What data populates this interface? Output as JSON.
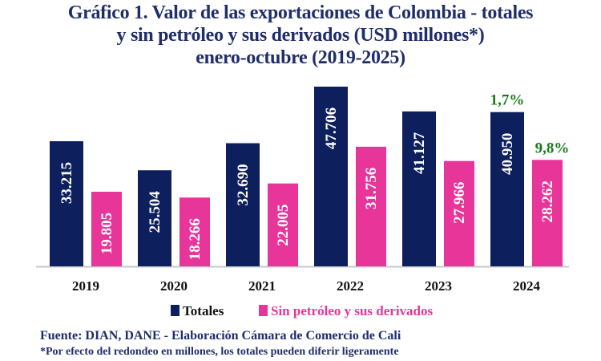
{
  "chart_data": {
    "type": "bar",
    "title": [
      "Gráfico 1. Valor de las exportaciones de Colombia - totales",
      "y sin petróleo y sus derivados (USD millones*)",
      "enero-octubre (2019-2025)"
    ],
    "categories": [
      "2019",
      "2020",
      "2021",
      "2022",
      "2023",
      "2024"
    ],
    "series": [
      {
        "name": "Totales",
        "color": "#0e1f5e",
        "values": [
          33215,
          25504,
          32690,
          47706,
          41127,
          40950
        ],
        "labels": [
          "33.215",
          "25.504",
          "32.690",
          "47.706",
          "41.127",
          "40.950"
        ]
      },
      {
        "name": "Sin petróleo y sus derivados",
        "color": "#e8359a",
        "values": [
          19805,
          18266,
          22005,
          31756,
          27966,
          28262
        ],
        "labels": [
          "19.805",
          "18.266",
          "22.005",
          "31.756",
          "27.966",
          "28.262"
        ]
      }
    ],
    "annotations": [
      {
        "category": "2024",
        "series": "Totales",
        "text": "1,7%",
        "color": "#1a7a1a"
      },
      {
        "category": "2024",
        "series": "Sin petróleo y sus derivados",
        "text": "9,8%",
        "color": "#1a7a1a"
      }
    ],
    "ylim": [
      0,
      50000
    ],
    "grid": false,
    "legend": "bottom",
    "xlabel": "",
    "ylabel": ""
  },
  "footer": {
    "source": "Fuente: DIAN, DANE - Elaboración Cámara de Comercio de Cali",
    "note": "*Por efecto del redondeo en millones, los totales pueden diferir ligeramente"
  }
}
